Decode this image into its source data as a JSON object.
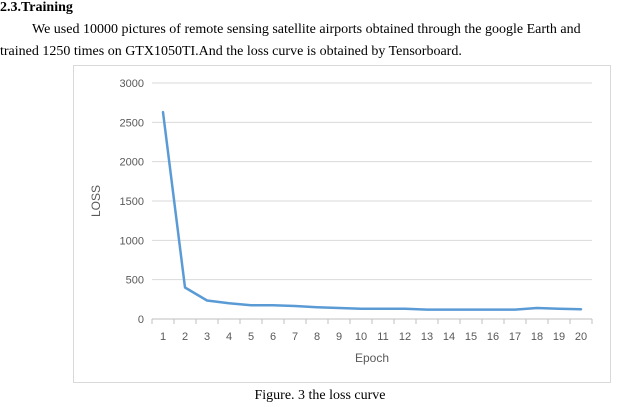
{
  "section": {
    "heading": "2.3.Training",
    "paragraph_line1": "We used 10000 pictures of remote sensing satellite airports obtained through the google Earth and",
    "paragraph_line2": "trained 1250 times on GTX1050TI.And the loss curve is obtained by Tensorboard."
  },
  "figure": {
    "caption": "Figure. 3 the loss curve"
  },
  "chart_data": {
    "type": "line",
    "title": "",
    "xlabel": "Epoch",
    "ylabel": "LOSS",
    "x": [
      1,
      2,
      3,
      4,
      5,
      6,
      7,
      8,
      9,
      10,
      11,
      12,
      13,
      14,
      15,
      16,
      17,
      18,
      19,
      20
    ],
    "y_ticks": [
      0,
      500,
      1000,
      1500,
      2000,
      2500,
      3000
    ],
    "ylim": [
      0,
      3000
    ],
    "grid": "horizontal",
    "series": [
      {
        "color": "#5b9bd5",
        "values": [
          2630,
          400,
          235,
          200,
          175,
          175,
          165,
          150,
          140,
          130,
          130,
          130,
          120,
          120,
          120,
          120,
          120,
          140,
          130,
          125
        ]
      }
    ]
  }
}
